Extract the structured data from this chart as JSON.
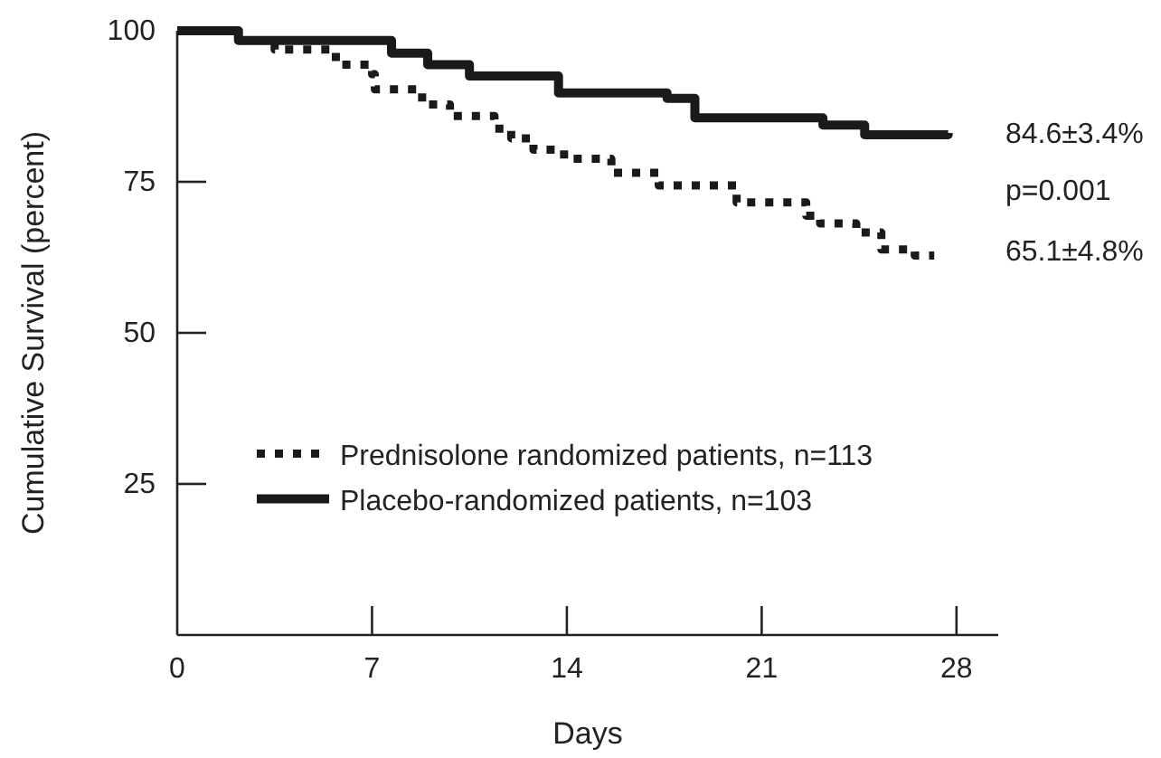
{
  "chart_data": {
    "type": "step",
    "xlabel": "Days",
    "ylabel": "Cumulative Survival (percent)",
    "xlim": [
      0,
      29.5
    ],
    "xticks": [
      0,
      7,
      14,
      21,
      28
    ],
    "ylim": [
      0,
      100
    ],
    "yticks": [
      25,
      50,
      75,
      100
    ],
    "legend": "bottom left",
    "series": [
      {
        "name": "Prednisolone randomized patients, n=113",
        "color": "#1a1a1a",
        "line_style": "dotted",
        "x": [
          0,
          2.2,
          3.5,
          5.7,
          7,
          7.1,
          8.8,
          9.8,
          11.4,
          12,
          12.8,
          13.9,
          15.6,
          17.3,
          20.1,
          22.6,
          23.1,
          24.4,
          25.3,
          26.5,
          27.2
        ],
        "values": [
          100,
          98.4,
          96.9,
          94.4,
          92.8,
          90.3,
          87.8,
          85.9,
          83.8,
          82.2,
          80.3,
          78.8,
          76.5,
          74.4,
          71.6,
          69.4,
          68.1,
          66.6,
          63.8,
          62.8,
          62.8
        ]
      },
      {
        "name": "Placebo-randomized patients, n=103",
        "color": "#1a1a1a",
        "line_style": "solid",
        "x": [
          0,
          2.2,
          7.7,
          9,
          10.5,
          13.7,
          17.6,
          18.6,
          23.2,
          24.7,
          27.7
        ],
        "values": [
          100,
          98.4,
          96.3,
          94.4,
          92.5,
          89.7,
          88.8,
          85.6,
          84.4,
          82.8,
          83.1
        ]
      }
    ],
    "annotations": [
      "84.6±3.4%",
      "p=0.001",
      "65.1±4.8%"
    ]
  }
}
